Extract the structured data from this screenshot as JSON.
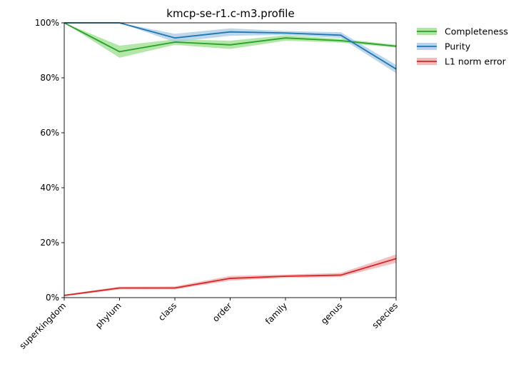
{
  "chart_data": {
    "type": "line",
    "title": "kmcp-se-r1.c-m3.profile",
    "xlabel": "",
    "ylabel": "",
    "categories": [
      "superkingdom",
      "phylum",
      "class",
      "order",
      "family",
      "genus",
      "species"
    ],
    "ylim": [
      0,
      100
    ],
    "yticks": [
      "0%",
      "20%",
      "40%",
      "60%",
      "80%",
      "100%"
    ],
    "grid": false,
    "legend_position": "outside-top-right",
    "series": [
      {
        "name": "Completeness",
        "color": "#2ca02c",
        "band_color": "#98df8a",
        "values": [
          100,
          89.5,
          93.0,
          92.0,
          94.5,
          93.5,
          91.5
        ],
        "band_low": [
          100,
          87.3,
          92.0,
          90.5,
          93.5,
          92.8,
          91.0
        ],
        "band_high": [
          100,
          91.7,
          94.0,
          93.5,
          95.5,
          94.2,
          92.0
        ]
      },
      {
        "name": "Purity",
        "color": "#1f77b4",
        "band_color": "#a6c8e3",
        "values": [
          100,
          100,
          94.5,
          96.7,
          96.3,
          95.5,
          83.2
        ],
        "band_low": [
          100,
          100,
          93.0,
          95.3,
          95.6,
          94.5,
          81.7
        ],
        "band_high": [
          100,
          100,
          96.0,
          98.0,
          97.0,
          96.6,
          84.7
        ]
      },
      {
        "name": "L1 norm error",
        "color": "#d62728",
        "band_color": "#f1a9aa",
        "values": [
          0.8,
          3.5,
          3.5,
          7.0,
          7.8,
          8.2,
          14.2
        ],
        "band_low": [
          0.5,
          3.0,
          3.0,
          6.2,
          7.2,
          7.5,
          12.7
        ],
        "band_high": [
          1.1,
          4.0,
          4.1,
          7.9,
          8.4,
          9.0,
          15.7
        ]
      }
    ]
  }
}
